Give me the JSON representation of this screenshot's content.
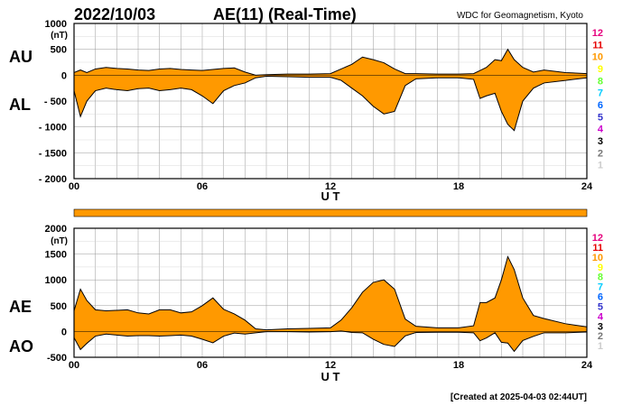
{
  "header": {
    "date": "2022/10/03",
    "index_title": "AE(11) (Real-Time)",
    "source": "WDC for Geomagnetism, Kyoto"
  },
  "footer": {
    "created": "[Created at 2025-04-03 02:44UT]"
  },
  "station_count_legend": [
    {
      "label": "12",
      "color": "#e6007e"
    },
    {
      "label": "11",
      "color": "#e60000"
    },
    {
      "label": "10",
      "color": "#ff9900"
    },
    {
      "label": "9",
      "color": "#ffff00"
    },
    {
      "label": "8",
      "color": "#66ff33"
    },
    {
      "label": "7",
      "color": "#00ccff"
    },
    {
      "label": "6",
      "color": "#0066ff"
    },
    {
      "label": "5",
      "color": "#3333cc"
    },
    {
      "label": "4",
      "color": "#cc00cc"
    },
    {
      "label": "3",
      "color": "#000000"
    },
    {
      "label": "2",
      "color": "#777777"
    },
    {
      "label": "1",
      "color": "#cccccc"
    }
  ],
  "colors": {
    "fill": "#ff9900",
    "line": "#000000",
    "grid": "#999999",
    "frame": "#000000"
  },
  "chart_data": [
    {
      "type": "area",
      "name": "AU/AL",
      "series_labels": [
        "AU",
        "AL"
      ],
      "y_unit": "(nT)",
      "ylim": [
        -2000,
        1000
      ],
      "yticks": [
        1000,
        500,
        0,
        -500,
        -1000,
        -1500,
        -2000
      ],
      "ytick_labels": [
        "1000",
        "500",
        "0",
        "- 500",
        "- 1000",
        "- 1500",
        "- 2000"
      ],
      "xlim": [
        0,
        24
      ],
      "xticks": [
        0,
        6,
        12,
        18,
        24
      ],
      "xtick_labels": [
        "00",
        "06",
        "12",
        "18",
        "24"
      ],
      "xlabel": "U T",
      "grid": true,
      "x": [
        0,
        0.3,
        0.6,
        1,
        1.5,
        2,
        2.5,
        3,
        3.5,
        4,
        4.5,
        5,
        5.5,
        6,
        6.5,
        7,
        7.5,
        8,
        8.5,
        9,
        10,
        11,
        12,
        12.5,
        13,
        13.5,
        14,
        14.5,
        15,
        15.5,
        16,
        17,
        18,
        18.7,
        19,
        19.3,
        19.7,
        20,
        20.3,
        20.6,
        21,
        21.5,
        22,
        23,
        24
      ],
      "series": [
        {
          "name": "AU",
          "values": [
            50,
            100,
            50,
            120,
            150,
            130,
            120,
            100,
            90,
            120,
            130,
            110,
            100,
            90,
            110,
            130,
            140,
            60,
            0,
            10,
            20,
            20,
            30,
            120,
            210,
            350,
            300,
            240,
            120,
            30,
            30,
            20,
            20,
            30,
            90,
            150,
            300,
            280,
            500,
            300,
            150,
            60,
            100,
            50,
            30
          ]
        },
        {
          "name": "AL",
          "values": [
            -300,
            -800,
            -500,
            -300,
            -250,
            -280,
            -300,
            -260,
            -250,
            -300,
            -280,
            -250,
            -280,
            -400,
            -550,
            -300,
            -200,
            -150,
            -50,
            -20,
            -30,
            -40,
            -40,
            -100,
            -250,
            -400,
            -600,
            -750,
            -700,
            -200,
            -70,
            -50,
            -50,
            -80,
            -450,
            -400,
            -350,
            -700,
            -950,
            -1070,
            -500,
            -250,
            -150,
            -100,
            -50
          ]
        }
      ]
    },
    {
      "type": "area",
      "name": "AE/AO",
      "series_labels": [
        "AE",
        "AO"
      ],
      "y_unit": "(nT)",
      "ylim": [
        -500,
        2000
      ],
      "yticks": [
        2000,
        1500,
        1000,
        500,
        0,
        -500
      ],
      "ytick_labels": [
        "2000",
        "1500",
        "1000",
        "500",
        "0",
        "-500"
      ],
      "xlim": [
        0,
        24
      ],
      "xticks": [
        0,
        6,
        12,
        18,
        24
      ],
      "xtick_labels": [
        "00",
        "06",
        "12",
        "18",
        "24"
      ],
      "xlabel": "U T",
      "grid": true,
      "x": [
        0,
        0.3,
        0.6,
        1,
        1.5,
        2,
        2.5,
        3,
        3.5,
        4,
        4.5,
        5,
        5.5,
        6,
        6.5,
        7,
        7.5,
        8,
        8.5,
        9,
        10,
        11,
        12,
        12.5,
        13,
        13.5,
        14,
        14.5,
        15,
        15.5,
        16,
        17,
        18,
        18.7,
        19,
        19.3,
        19.7,
        20,
        20.3,
        20.6,
        21,
        21.5,
        22,
        23,
        24
      ],
      "series": [
        {
          "name": "AE",
          "values": [
            400,
            820,
            600,
            420,
            400,
            410,
            420,
            360,
            340,
            420,
            420,
            360,
            380,
            500,
            650,
            430,
            340,
            220,
            50,
            30,
            50,
            60,
            70,
            220,
            460,
            760,
            950,
            1000,
            820,
            240,
            100,
            70,
            70,
            110,
            560,
            560,
            650,
            1000,
            1450,
            1200,
            650,
            310,
            250,
            150,
            90
          ]
        },
        {
          "name": "AO",
          "values": [
            -120,
            -350,
            -230,
            -90,
            -50,
            -70,
            -90,
            -80,
            -80,
            -90,
            -80,
            -70,
            -90,
            -150,
            -220,
            -90,
            -30,
            -50,
            -25,
            -5,
            -5,
            -10,
            -5,
            10,
            -20,
            -25,
            -150,
            -250,
            -290,
            -85,
            -20,
            -15,
            -15,
            -25,
            -180,
            -125,
            -25,
            -210,
            -225,
            -385,
            -175,
            -95,
            -25,
            -25,
            -10
          ]
        }
      ]
    }
  ]
}
